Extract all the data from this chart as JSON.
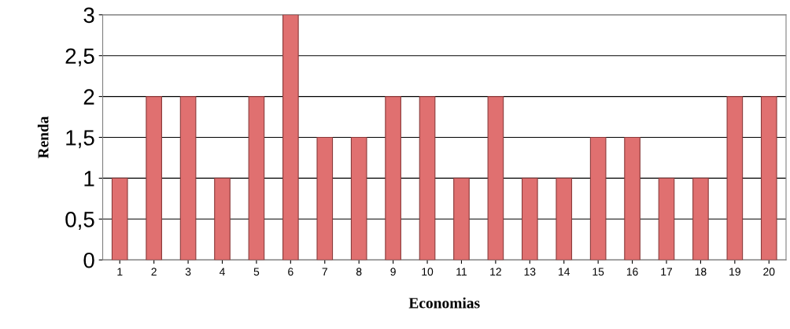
{
  "chart_data": {
    "type": "bar",
    "xlabel": "Economias",
    "ylabel": "Renda",
    "categories": [
      "1",
      "2",
      "3",
      "4",
      "5",
      "6",
      "7",
      "8",
      "9",
      "10",
      "11",
      "12",
      "13",
      "14",
      "15",
      "16",
      "17",
      "18",
      "19",
      "20"
    ],
    "values": [
      1,
      2,
      2,
      1,
      2,
      3,
      1.5,
      1.5,
      2,
      2,
      1,
      2,
      1,
      1,
      1.5,
      1.5,
      1,
      1,
      2,
      2
    ],
    "color": "#e07070",
    "ylim": [
      0,
      3
    ],
    "yticks": [
      0,
      {
        "value": 0.5,
        "label": "0,5"
      },
      1,
      {
        "value": 1.5,
        "label": "1,5"
      },
      2,
      {
        "value": 2.5,
        "label": "2,5"
      },
      3
    ],
    "grid": "y"
  }
}
